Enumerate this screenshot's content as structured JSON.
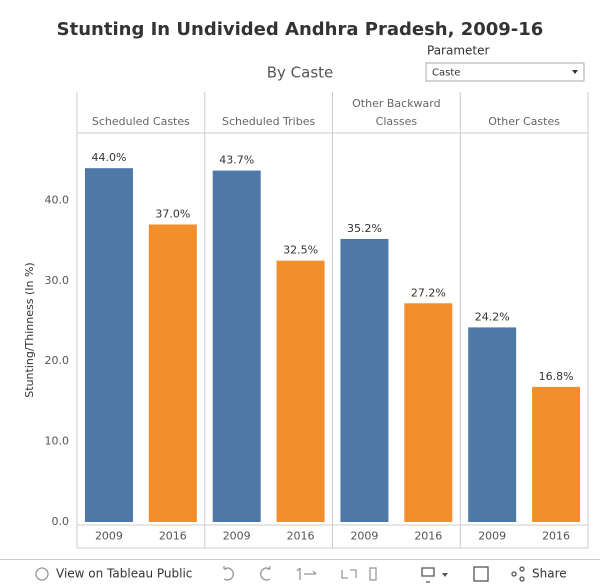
{
  "chart_data": {
    "type": "bar",
    "title": "Stunting In Undivided Andhra Pradesh, 2009-16",
    "subtitle": "By Caste",
    "parameter_label": "Parameter",
    "parameter_value": "Caste",
    "y_label": "Stunting/Thinness (In %)",
    "categories": [
      "Scheduled Castes",
      "Scheduled Tribes",
      "Other Backward Classes",
      "Other Castes"
    ],
    "series": [
      {
        "name": "2009",
        "color": "#4e79a7",
        "values": [
          44.0,
          43.7,
          35.2,
          24.2
        ],
        "value_labels": [
          "44.0%",
          "43.7%",
          "35.2%",
          "24.2%"
        ]
      },
      {
        "name": "2016",
        "color": "#f28e2b",
        "values": [
          37.0,
          32.5,
          27.2,
          16.8
        ],
        "value_labels": [
          "37.0%",
          "32.5%",
          "27.2%",
          "16.8%"
        ]
      }
    ],
    "ylim": [
      0,
      48
    ],
    "yticks": [
      {
        "value": 0,
        "label": "0.0"
      },
      {
        "value": 10,
        "label": "10.0"
      },
      {
        "value": 20,
        "label": "20.0"
      },
      {
        "value": 30,
        "label": "30.0"
      },
      {
        "value": 40,
        "label": "40.0"
      }
    ],
    "grid": false
  },
  "toolbar": {
    "view_link": "View on Tableau Public",
    "share": "Share"
  }
}
